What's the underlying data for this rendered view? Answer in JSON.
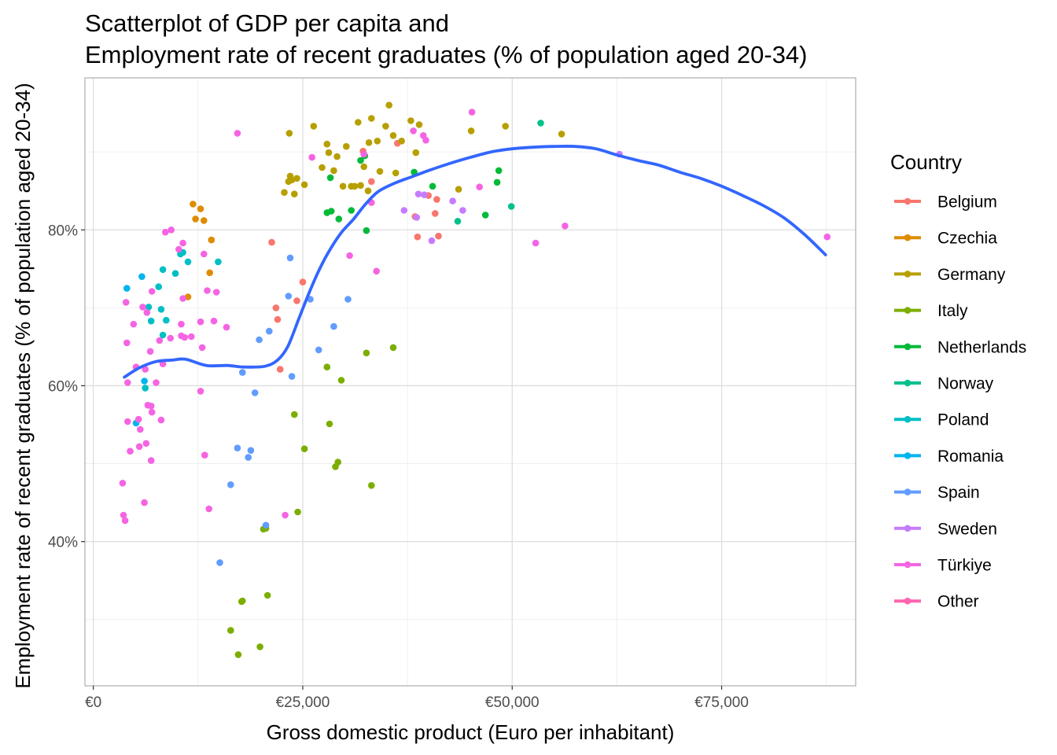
{
  "chart_data": {
    "type": "scatter",
    "title": [
      "Scatterplot of GDP per capita and",
      "Employment rate of recent graduates (% of population aged 20-34)"
    ],
    "xlabel": "Gross domestic product (Euro per inhabitant)",
    "ylabel": "Employment rate of recent graduates (% of population aged 20-34)",
    "xlim": [
      -1000,
      91000
    ],
    "ylim": [
      21.5,
      99.5
    ],
    "x_ticks": [
      {
        "value": 0,
        "label": "€0"
      },
      {
        "value": 25000,
        "label": "€25,000"
      },
      {
        "value": 50000,
        "label": "€50,000"
      },
      {
        "value": 75000,
        "label": "€75,000"
      }
    ],
    "y_ticks": [
      {
        "value": 40,
        "label": "40%"
      },
      {
        "value": 60,
        "label": "60%"
      },
      {
        "value": 80,
        "label": "80%"
      }
    ],
    "x_minor": [
      12500,
      37500,
      62500,
      87500
    ],
    "y_minor": [
      30,
      50,
      70,
      90
    ],
    "grid": true,
    "legend_title": "Country",
    "legend_position": "right",
    "series": [
      {
        "name": "Belgium",
        "color": "#F8766D",
        "points": [
          [
            21300,
            78.4
          ],
          [
            21800,
            70
          ],
          [
            22000,
            68.5
          ],
          [
            22300,
            62.1
          ],
          [
            24300,
            70.9
          ],
          [
            25000,
            73.3
          ],
          [
            32200,
            90.1
          ],
          [
            33200,
            86.2
          ],
          [
            36300,
            91.1
          ],
          [
            38400,
            81.7
          ],
          [
            40000,
            84.4
          ],
          [
            40800,
            82.1
          ],
          [
            41000,
            83.9
          ],
          [
            41200,
            79.2
          ],
          [
            38700,
            79.1
          ]
        ]
      },
      {
        "name": "Czechia",
        "color": "#DE8C00",
        "points": [
          [
            11300,
            71.4
          ],
          [
            11900,
            83.3
          ],
          [
            12200,
            81.4
          ],
          [
            12800,
            82.7
          ],
          [
            13200,
            81.2
          ],
          [
            13900,
            74.5
          ],
          [
            14100,
            78.7
          ]
        ]
      },
      {
        "name": "Germany",
        "color": "#B79F00",
        "points": [
          [
            22800,
            84.8
          ],
          [
            23300,
            86.2
          ],
          [
            23400,
            92.4
          ],
          [
            23500,
            86.9
          ],
          [
            23700,
            86.4
          ],
          [
            24000,
            84.6
          ],
          [
            24300,
            86.6
          ],
          [
            25200,
            85.8
          ],
          [
            26300,
            93.3
          ],
          [
            27300,
            88
          ],
          [
            27900,
            91
          ],
          [
            28100,
            89.9
          ],
          [
            28700,
            87.6
          ],
          [
            29100,
            89.4
          ],
          [
            29800,
            85.6
          ],
          [
            30200,
            90.7
          ],
          [
            30800,
            85.6
          ],
          [
            31200,
            85.6
          ],
          [
            31600,
            93.8
          ],
          [
            31900,
            85.7
          ],
          [
            32300,
            88.1
          ],
          [
            32800,
            85
          ],
          [
            32900,
            91.2
          ],
          [
            33200,
            94.3
          ],
          [
            33900,
            91.4
          ],
          [
            34200,
            87.5
          ],
          [
            34900,
            93.3
          ],
          [
            35300,
            96
          ],
          [
            35800,
            92.1
          ],
          [
            36100,
            87.3
          ],
          [
            36800,
            91.4
          ],
          [
            37900,
            94
          ],
          [
            38500,
            89.9
          ],
          [
            38900,
            93.5
          ],
          [
            43600,
            85.2
          ],
          [
            45100,
            92.7
          ],
          [
            49200,
            93.3
          ],
          [
            55900,
            92.3
          ]
        ]
      },
      {
        "name": "Italy",
        "color": "#7CAE00",
        "points": [
          [
            16400,
            28.6
          ],
          [
            17300,
            25.5
          ],
          [
            17700,
            32.3
          ],
          [
            17800,
            32.4
          ],
          [
            19900,
            26.5
          ],
          [
            20300,
            41.6
          ],
          [
            20600,
            41.7
          ],
          [
            20800,
            33.1
          ],
          [
            24000,
            56.3
          ],
          [
            24400,
            43.8
          ],
          [
            25200,
            51.9
          ],
          [
            27900,
            62.4
          ],
          [
            28200,
            55.1
          ],
          [
            28900,
            49.6
          ],
          [
            29200,
            50.2
          ],
          [
            29600,
            60.7
          ],
          [
            32600,
            64.2
          ],
          [
            33200,
            47.2
          ],
          [
            35800,
            64.9
          ]
        ]
      },
      {
        "name": "Netherlands",
        "color": "#00BA38",
        "points": [
          [
            27900,
            82.2
          ],
          [
            28300,
            86.7
          ],
          [
            28400,
            82.4
          ],
          [
            29300,
            81.4
          ],
          [
            30800,
            82.5
          ],
          [
            31900,
            88.9
          ],
          [
            32400,
            89.5
          ],
          [
            32600,
            79.9
          ],
          [
            38300,
            87.4
          ],
          [
            40500,
            85.6
          ],
          [
            46800,
            81.9
          ],
          [
            48200,
            86.1
          ],
          [
            48400,
            87.6
          ]
        ]
      },
      {
        "name": "Norway",
        "color": "#00C08B",
        "points": [
          [
            43500,
            81.1
          ],
          [
            49900,
            83
          ],
          [
            53400,
            93.7
          ]
        ]
      },
      {
        "name": "Poland",
        "color": "#00BFC4",
        "points": [
          [
            6200,
            59.7
          ],
          [
            6600,
            70.1
          ],
          [
            6900,
            68.3
          ],
          [
            7800,
            72.7
          ],
          [
            8100,
            69.8
          ],
          [
            8300,
            74.9
          ],
          [
            8300,
            66.5
          ],
          [
            8700,
            68.4
          ],
          [
            9800,
            74.4
          ],
          [
            10400,
            76.9
          ],
          [
            10700,
            77.1
          ],
          [
            11300,
            75.9
          ],
          [
            14900,
            75.9
          ]
        ]
      },
      {
        "name": "Romania",
        "color": "#00B4F0",
        "points": [
          [
            4000,
            72.5
          ],
          [
            5100,
            55.2
          ],
          [
            5800,
            74
          ],
          [
            6100,
            60.6
          ]
        ]
      },
      {
        "name": "Spain",
        "color": "#619CFF",
        "points": [
          [
            15100,
            37.3
          ],
          [
            16400,
            47.3
          ],
          [
            17200,
            52
          ],
          [
            17800,
            61.7
          ],
          [
            18500,
            50.8
          ],
          [
            18800,
            51.7
          ],
          [
            19300,
            59.1
          ],
          [
            19800,
            65.9
          ],
          [
            20600,
            42.1
          ],
          [
            21000,
            67
          ],
          [
            23300,
            71.5
          ],
          [
            23500,
            76.4
          ],
          [
            23700,
            61.2
          ],
          [
            25900,
            71.1
          ],
          [
            26900,
            64.6
          ],
          [
            28700,
            67.6
          ],
          [
            30400,
            71.1
          ]
        ]
      },
      {
        "name": "Sweden",
        "color": "#C77CFF",
        "points": [
          [
            37100,
            82.5
          ],
          [
            38600,
            81.6
          ],
          [
            38800,
            84.6
          ],
          [
            39500,
            84.5
          ],
          [
            40400,
            78.6
          ],
          [
            42900,
            83.7
          ],
          [
            44100,
            82.5
          ],
          [
            62800,
            89.7
          ]
        ]
      },
      {
        "name": "Türkiye",
        "color": "#F564E3",
        "points": [
          [
            3500,
            47.5
          ],
          [
            3600,
            43.4
          ],
          [
            3800,
            42.7
          ],
          [
            3900,
            70.7
          ],
          [
            4000,
            65.5
          ],
          [
            4100,
            55.4
          ],
          [
            4100,
            60.4
          ],
          [
            4400,
            51.6
          ],
          [
            4800,
            67.9
          ],
          [
            5100,
            62.4
          ],
          [
            5400,
            55.7
          ],
          [
            5500,
            52.2
          ],
          [
            5600,
            54.4
          ],
          [
            5900,
            70.1
          ],
          [
            6200,
            62.1
          ],
          [
            6100,
            45
          ],
          [
            6300,
            52.6
          ],
          [
            6400,
            69.4
          ],
          [
            6500,
            57.5
          ],
          [
            6800,
            64.4
          ],
          [
            6900,
            57.4
          ],
          [
            7000,
            72.1
          ],
          [
            6900,
            50.4
          ],
          [
            7000,
            56.6
          ],
          [
            7500,
            60.4
          ],
          [
            7900,
            65.8
          ],
          [
            8100,
            55.6
          ],
          [
            8300,
            62.8
          ],
          [
            8600,
            79.7
          ],
          [
            9200,
            66.1
          ],
          [
            9300,
            80
          ],
          [
            10200,
            77.5
          ],
          [
            10500,
            67.9
          ],
          [
            10500,
            66.4
          ],
          [
            10700,
            71.2
          ],
          [
            10700,
            78.3
          ],
          [
            10900,
            66.2
          ],
          [
            11700,
            66.3
          ],
          [
            12800,
            68.2
          ],
          [
            12800,
            59.3
          ],
          [
            13000,
            64.9
          ],
          [
            13200,
            76.9
          ],
          [
            13300,
            51.1
          ],
          [
            13600,
            72.2
          ],
          [
            13800,
            44.2
          ],
          [
            14400,
            68.3
          ],
          [
            14700,
            72
          ],
          [
            15900,
            67.5
          ],
          [
            17200,
            92.4
          ],
          [
            22900,
            43.4
          ],
          [
            26100,
            89.3
          ],
          [
            30600,
            76.7
          ],
          [
            32300,
            89.7
          ],
          [
            33200,
            83.5
          ],
          [
            33800,
            74.7
          ],
          [
            38200,
            92.7
          ],
          [
            39400,
            92.1
          ],
          [
            39700,
            91.5
          ],
          [
            45200,
            95.1
          ],
          [
            46100,
            85.5
          ],
          [
            52800,
            78.3
          ],
          [
            56300,
            80.5
          ],
          [
            87600,
            79.1
          ]
        ]
      },
      {
        "name": "Other",
        "color": "#FF64B0",
        "points": []
      }
    ],
    "trend": {
      "color": "#3366FF",
      "points": [
        [
          3700,
          61.1
        ],
        [
          5500,
          62.3
        ],
        [
          7500,
          63.1
        ],
        [
          9500,
          63.3
        ],
        [
          11000,
          63.4
        ],
        [
          13500,
          62.6
        ],
        [
          16000,
          62.6
        ],
        [
          18000,
          62.4
        ],
        [
          20500,
          62.5
        ],
        [
          22000,
          63.3
        ],
        [
          23200,
          65
        ],
        [
          24500,
          68.5
        ],
        [
          25600,
          71.5
        ],
        [
          26800,
          74.5
        ],
        [
          28000,
          77
        ],
        [
          29500,
          79.5
        ],
        [
          31000,
          81.3
        ],
        [
          32500,
          83.3
        ],
        [
          34000,
          84.9
        ],
        [
          36000,
          86
        ],
        [
          38000,
          86.8
        ],
        [
          40000,
          87.6
        ],
        [
          42500,
          88.5
        ],
        [
          45000,
          89.3
        ],
        [
          47500,
          90
        ],
        [
          50000,
          90.4
        ],
        [
          52500,
          90.6
        ],
        [
          55000,
          90.7
        ],
        [
          57500,
          90.7
        ],
        [
          60000,
          90.4
        ],
        [
          62500,
          89.6
        ],
        [
          65000,
          88.9
        ],
        [
          67500,
          88.3
        ],
        [
          70000,
          87.4
        ],
        [
          72500,
          86.6
        ],
        [
          75000,
          85.6
        ],
        [
          77500,
          84.4
        ],
        [
          80000,
          83.1
        ],
        [
          82500,
          81.5
        ],
        [
          85000,
          79.3
        ],
        [
          87400,
          76.8
        ]
      ]
    }
  }
}
